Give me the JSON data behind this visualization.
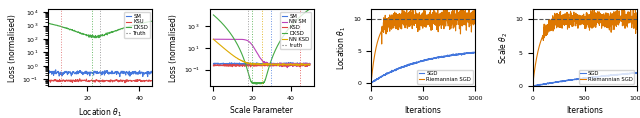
{
  "fig_width": 6.4,
  "fig_height": 1.18,
  "dpi": 100,
  "plot1": {
    "xlabel": "Location $\\theta_1$",
    "ylabel": "Loss (normalised)",
    "sm_color": "#4477dd",
    "ksu_color": "#dd4444",
    "dksd_color": "#44aa44",
    "truth_color": "#666666",
    "vline_colors": [
      "#dd6666",
      "#44aa44",
      "#888888"
    ],
    "vline_positions": [
      10,
      22,
      25
    ],
    "xlim": [
      5,
      45
    ],
    "ylim_log": [
      -1.5,
      4.2
    ]
  },
  "plot2": {
    "xlabel": "Scale Parameter",
    "ylabel": "Loss (normalised)",
    "sm_color": "#4477dd",
    "nn_sm_color": "#bb44bb",
    "ksd_color": "#dd4444",
    "dksd_color": "#44aa44",
    "nn_ksd_color": "#ddaa00",
    "truth_color": "#666666",
    "vline_colors": [
      "#888888",
      "#44aa44",
      "#ddaa00",
      "#4477dd",
      "#dd4444"
    ],
    "vline_positions": [
      18,
      20,
      25,
      30,
      45
    ],
    "xlim": [
      -2,
      52
    ],
    "ylim_log": [
      -2.5,
      4.5
    ]
  },
  "plot3": {
    "xlabel": "Iterations",
    "ylabel": "Location $\\theta_1$",
    "sgd_color": "#4477dd",
    "rsgd_color": "#dd7700",
    "truth_color": "#555555",
    "truth_y": 10,
    "xlim": [
      0,
      1000
    ],
    "ylim": [
      -0.5,
      11.5
    ]
  },
  "plot4": {
    "xlabel": "Iterations",
    "ylabel": "Scale $\\theta_2$",
    "sgd_color": "#4477dd",
    "rsgd_color": "#dd7700",
    "truth_color": "#555555",
    "truth_y": 10,
    "xlim": [
      0,
      1000
    ],
    "ylim": [
      0,
      11.5
    ]
  }
}
